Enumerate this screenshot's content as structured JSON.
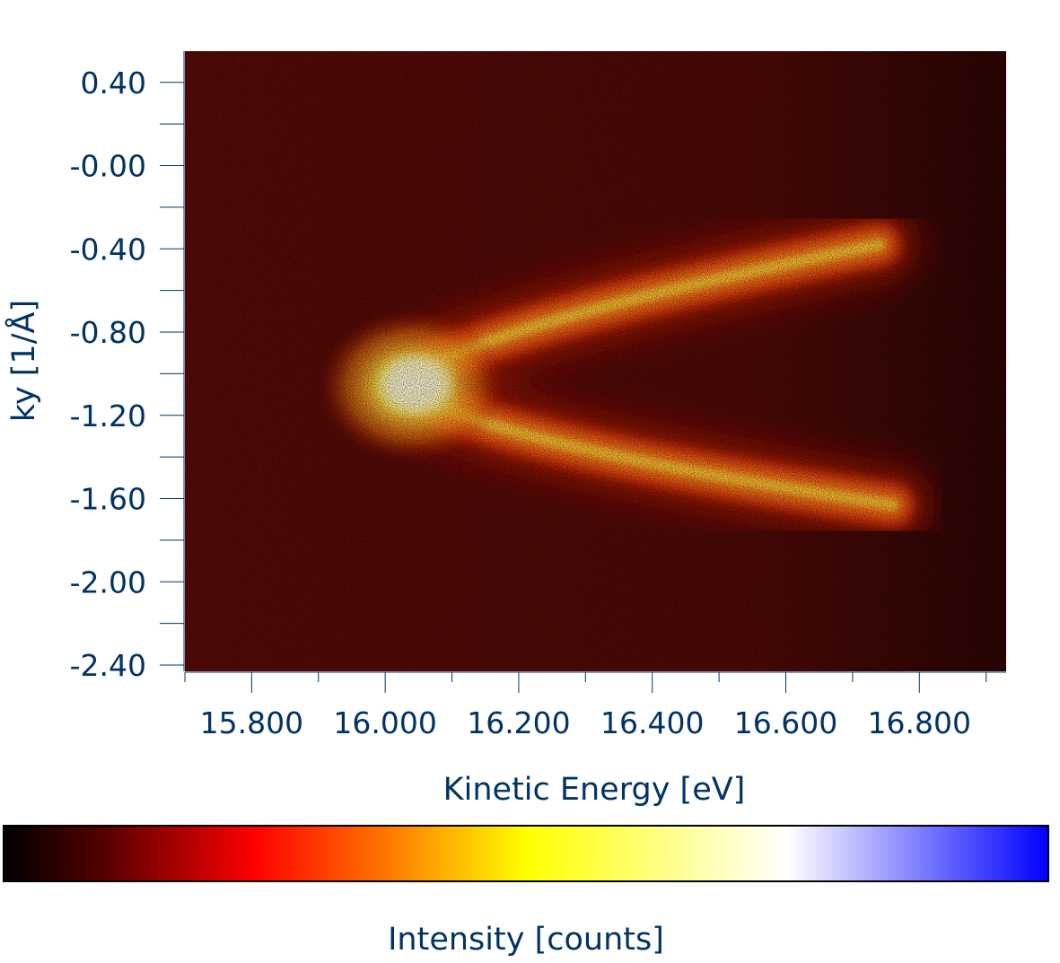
{
  "chart_data": {
    "type": "heatmap",
    "title": "",
    "xlabel": "Kinetic Energy [eV]",
    "ylabel": "ky [1/Å]",
    "xlim": [
      15.7,
      16.93
    ],
    "ylim": [
      -2.43,
      0.55
    ],
    "x_ticks": [
      "15.800",
      "16.000",
      "16.200",
      "16.400",
      "16.600",
      "16.800"
    ],
    "x_tick_values": [
      15.8,
      16.0,
      16.2,
      16.4,
      16.6,
      16.8
    ],
    "y_ticks": [
      "0.40",
      "-0.00",
      "-0.40",
      "-0.80",
      "-1.20",
      "-1.60",
      "-2.00",
      "-2.40"
    ],
    "y_tick_values": [
      0.4,
      0.0,
      -0.4,
      -0.8,
      -1.2,
      -1.6,
      -2.0,
      -2.4
    ],
    "band": {
      "vertex_energy": 16.03,
      "vertex_ky": -1.05,
      "upper_branch_end": [
        16.74,
        -0.38
      ],
      "lower_branch_end": [
        16.76,
        -1.63
      ]
    },
    "colorbar": {
      "label": "Intensity [counts]",
      "stops": [
        "#000000",
        "#5a0000",
        "#ff0000",
        "#ff7000",
        "#ffff00",
        "#ffffff",
        "#0000ff"
      ]
    },
    "colors": {
      "axis": "#003366",
      "text": "#003366"
    }
  }
}
